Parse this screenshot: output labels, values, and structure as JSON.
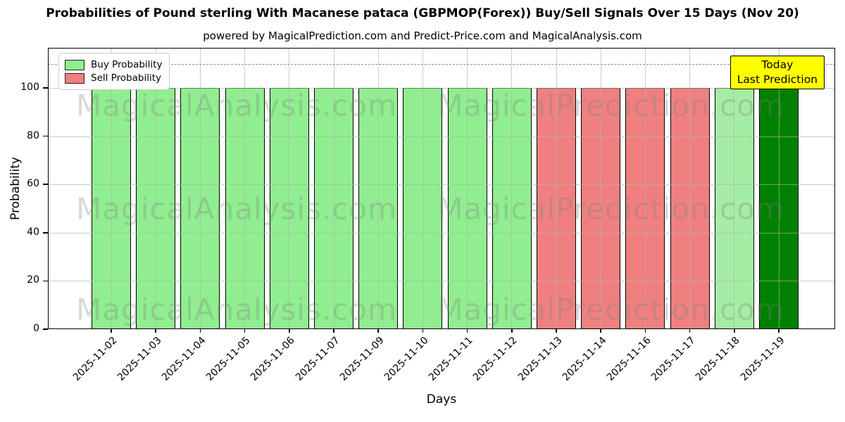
{
  "title": "Probabilities of Pound sterling With Macanese pataca (GBPMOP(Forex)) Buy/Sell Signals Over 15 Days (Nov 20)",
  "subtitle": "powered by MagicalPrediction.com and Predict-Price.com and MagicalAnalysis.com",
  "legend": {
    "items": [
      {
        "label": "Buy Probability",
        "color": "#90EE90"
      },
      {
        "label": "Sell Probability",
        "color": "#F08080"
      }
    ]
  },
  "annotation": {
    "line1": "Today",
    "line2": "Last Prediction",
    "bg": "#FFFF00"
  },
  "watermarks": [
    "MagicalAnalysis.com",
    "MagicalPrediction.com"
  ],
  "colors": {
    "buy": "#90EE90",
    "sell": "#F08080",
    "buy_faded": "#A5EDA5",
    "today": "#008000",
    "bar_edge": "#000000",
    "grid": "#b0b0b0",
    "dashed_line": "#8a8a8a"
  },
  "chart_data": {
    "type": "bar",
    "title": "Probabilities of Pound sterling With Macanese pataca (GBPMOP(Forex)) Buy/Sell Signals Over 15 Days (Nov 20)",
    "xlabel": "Days",
    "ylabel": "Probability",
    "ylim": [
      0,
      116.6
    ],
    "yticks": [
      0,
      20,
      40,
      60,
      80,
      100
    ],
    "grid": true,
    "legend_position": "upper left",
    "dashed_line_y": 110,
    "categories": [
      "2025-11-02",
      "2025-11-03",
      "2025-11-04",
      "2025-11-05",
      "2025-11-06",
      "2025-11-07",
      "2025-11-09",
      "2025-11-10",
      "2025-11-11",
      "2025-11-12",
      "2025-11-13",
      "2025-11-14",
      "2025-11-16",
      "2025-11-17",
      "2025-11-18",
      "2025-11-19"
    ],
    "series": [
      {
        "name": "Buy Probability",
        "values": [
          100,
          100,
          100,
          100,
          100,
          100,
          100,
          100,
          100,
          100,
          0,
          0,
          0,
          0,
          100,
          100
        ]
      },
      {
        "name": "Sell Probability",
        "values": [
          0,
          0,
          0,
          0,
          0,
          0,
          0,
          0,
          0,
          0,
          100,
          100,
          100,
          100,
          0,
          0
        ]
      }
    ],
    "bars": [
      {
        "date": "2025-11-02",
        "signal": "buy",
        "value": 100,
        "color": "#90EE90"
      },
      {
        "date": "2025-11-03",
        "signal": "buy",
        "value": 100,
        "color": "#90EE90"
      },
      {
        "date": "2025-11-04",
        "signal": "buy",
        "value": 100,
        "color": "#90EE90"
      },
      {
        "date": "2025-11-05",
        "signal": "buy",
        "value": 100,
        "color": "#90EE90"
      },
      {
        "date": "2025-11-06",
        "signal": "buy",
        "value": 100,
        "color": "#90EE90"
      },
      {
        "date": "2025-11-07",
        "signal": "buy",
        "value": 100,
        "color": "#90EE90"
      },
      {
        "date": "2025-11-09",
        "signal": "buy",
        "value": 100,
        "color": "#90EE90"
      },
      {
        "date": "2025-11-10",
        "signal": "buy",
        "value": 100,
        "color": "#90EE90"
      },
      {
        "date": "2025-11-11",
        "signal": "buy",
        "value": 100,
        "color": "#90EE90"
      },
      {
        "date": "2025-11-12",
        "signal": "buy",
        "value": 100,
        "color": "#90EE90"
      },
      {
        "date": "2025-11-13",
        "signal": "sell",
        "value": 100,
        "color": "#F08080"
      },
      {
        "date": "2025-11-14",
        "signal": "sell",
        "value": 100,
        "color": "#F08080"
      },
      {
        "date": "2025-11-16",
        "signal": "sell",
        "value": 100,
        "color": "#F08080"
      },
      {
        "date": "2025-11-17",
        "signal": "sell",
        "value": 100,
        "color": "#F08080"
      },
      {
        "date": "2025-11-18",
        "signal": "buy",
        "value": 100,
        "color": "#A5EDA5"
      },
      {
        "date": "2025-11-19",
        "signal": "buy-today",
        "value": 100,
        "color": "#008000"
      }
    ]
  }
}
